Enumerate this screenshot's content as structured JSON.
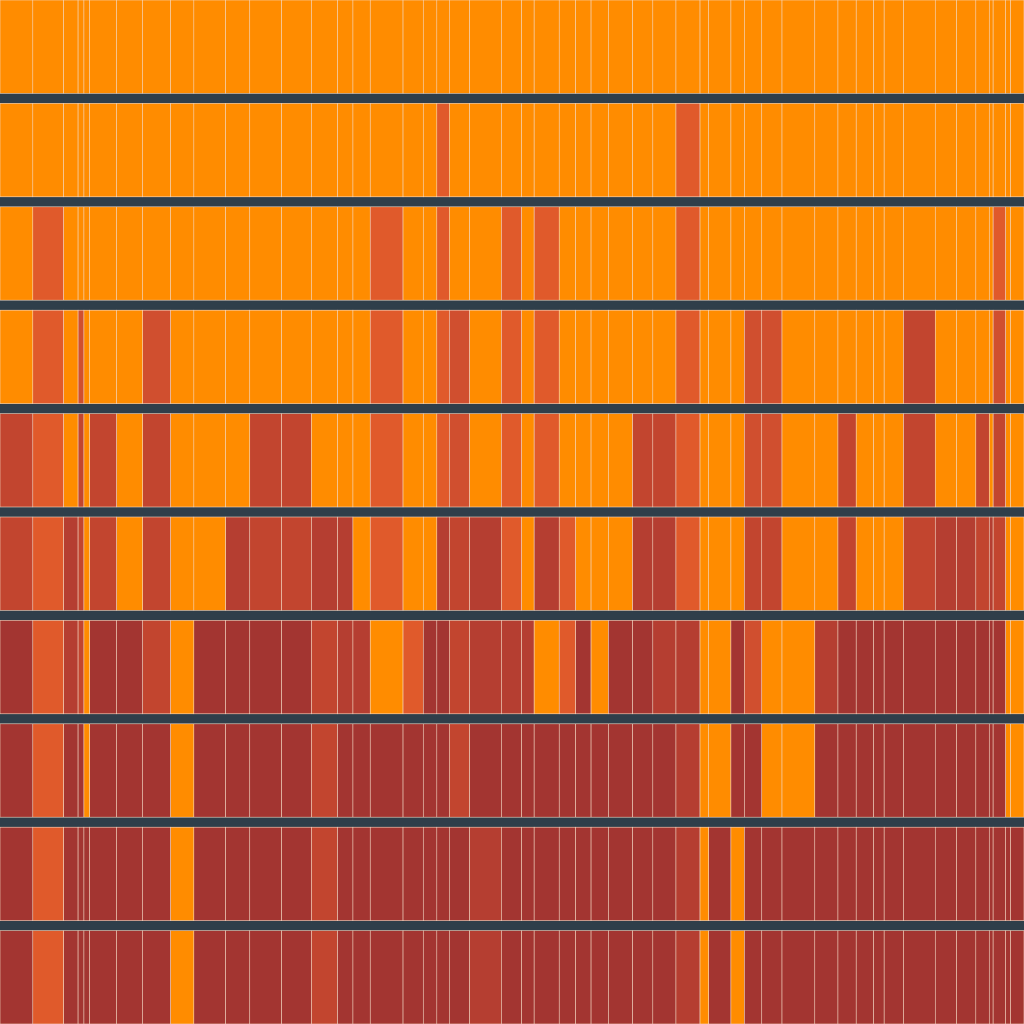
{
  "chart_data": {
    "type": "heatmap",
    "title": "",
    "xlabel": "",
    "ylabel": "",
    "column_weights": [
      34,
      32,
      15,
      6,
      6,
      28,
      27,
      29,
      24,
      33,
      25,
      33,
      31,
      27,
      16,
      18,
      34,
      21,
      14,
      13,
      21,
      33,
      21,
      13,
      26,
      17,
      16,
      18,
      25,
      21,
      24,
      25,
      9,
      23,
      14,
      18,
      21,
      34,
      24,
      19,
      18,
      11,
      20,
      33,
      22,
      20,
      14,
      4,
      13,
      5,
      14
    ],
    "palette": [
      "#ff8c00",
      "#e05a2b",
      "#d04f2f",
      "#c2452f",
      "#b53e31",
      "#a33531"
    ],
    "rows": [
      [
        0,
        0,
        0,
        0,
        0,
        0,
        0,
        0,
        0,
        0,
        0,
        0,
        0,
        0,
        0,
        0,
        0,
        0,
        0,
        0,
        0,
        0,
        0,
        0,
        0,
        0,
        0,
        0,
        0,
        0,
        0,
        0,
        0,
        0,
        0,
        0,
        0,
        0,
        0,
        0,
        0,
        0,
        0,
        0,
        0,
        0,
        0,
        0,
        0,
        0,
        0
      ],
      [
        0,
        0,
        0,
        0,
        0,
        0,
        0,
        0,
        0,
        0,
        0,
        0,
        0,
        0,
        0,
        0,
        0,
        0,
        0,
        1,
        0,
        0,
        0,
        0,
        0,
        0,
        0,
        0,
        0,
        0,
        0,
        1,
        0,
        0,
        0,
        0,
        0,
        0,
        0,
        0,
        0,
        0,
        0,
        0,
        0,
        0,
        0,
        0,
        0,
        0,
        0
      ],
      [
        0,
        1,
        0,
        0,
        0,
        0,
        0,
        0,
        0,
        0,
        0,
        0,
        0,
        0,
        0,
        0,
        1,
        0,
        0,
        1,
        0,
        0,
        1,
        0,
        1,
        0,
        0,
        0,
        0,
        0,
        0,
        1,
        0,
        0,
        0,
        0,
        0,
        0,
        0,
        0,
        0,
        0,
        0,
        0,
        0,
        0,
        0,
        0,
        1,
        0,
        0
      ],
      [
        0,
        1,
        0,
        2,
        0,
        0,
        0,
        2,
        0,
        0,
        0,
        0,
        0,
        0,
        0,
        0,
        1,
        0,
        0,
        1,
        2,
        0,
        1,
        0,
        1,
        0,
        0,
        0,
        0,
        0,
        0,
        1,
        0,
        0,
        0,
        2,
        2,
        0,
        0,
        0,
        0,
        0,
        0,
        3,
        0,
        0,
        0,
        0,
        2,
        0,
        0
      ],
      [
        3,
        1,
        0,
        3,
        0,
        3,
        0,
        3,
        0,
        0,
        0,
        3,
        3,
        0,
        0,
        0,
        1,
        0,
        0,
        1,
        2,
        0,
        1,
        0,
        1,
        0,
        0,
        0,
        0,
        3,
        3,
        1,
        0,
        0,
        0,
        2,
        2,
        0,
        0,
        3,
        0,
        0,
        0,
        3,
        0,
        0,
        3,
        0,
        3,
        0,
        0
      ],
      [
        3,
        1,
        4,
        3,
        0,
        3,
        0,
        3,
        0,
        0,
        4,
        3,
        3,
        4,
        4,
        0,
        1,
        0,
        0,
        4,
        3,
        4,
        1,
        0,
        4,
        1,
        0,
        0,
        0,
        4,
        4,
        1,
        0,
        0,
        0,
        3,
        3,
        0,
        0,
        3,
        0,
        0,
        0,
        3,
        4,
        4,
        3,
        4,
        3,
        0,
        0
      ],
      [
        5,
        1,
        4,
        3,
        0,
        5,
        5,
        3,
        0,
        5,
        5,
        5,
        5,
        3,
        4,
        4,
        0,
        1,
        5,
        5,
        3,
        4,
        4,
        4,
        0,
        1,
        5,
        0,
        5,
        5,
        4,
        4,
        0,
        0,
        5,
        2,
        0,
        0,
        4,
        5,
        5,
        5,
        5,
        5,
        5,
        5,
        5,
        5,
        5,
        0,
        0
      ],
      [
        5,
        1,
        5,
        5,
        0,
        5,
        5,
        5,
        0,
        5,
        5,
        5,
        5,
        3,
        5,
        5,
        5,
        5,
        5,
        5,
        3,
        5,
        5,
        5,
        5,
        5,
        5,
        5,
        5,
        5,
        5,
        4,
        0,
        0,
        5,
        5,
        0,
        0,
        5,
        5,
        5,
        5,
        5,
        5,
        5,
        5,
        5,
        5,
        5,
        0,
        0
      ],
      [
        5,
        1,
        5,
        5,
        5,
        5,
        5,
        5,
        0,
        5,
        5,
        5,
        5,
        3,
        5,
        5,
        5,
        5,
        5,
        5,
        5,
        4,
        5,
        5,
        5,
        5,
        5,
        5,
        5,
        5,
        5,
        4,
        0,
        5,
        0,
        5,
        5,
        5,
        5,
        5,
        5,
        5,
        5,
        5,
        5,
        5,
        5,
        5,
        5,
        5,
        5
      ],
      [
        5,
        1,
        5,
        5,
        5,
        5,
        5,
        5,
        0,
        5,
        5,
        5,
        5,
        3,
        5,
        5,
        5,
        5,
        5,
        5,
        5,
        4,
        5,
        5,
        5,
        5,
        5,
        5,
        5,
        5,
        5,
        4,
        0,
        5,
        0,
        5,
        5,
        5,
        5,
        5,
        5,
        5,
        5,
        5,
        5,
        5,
        5,
        5,
        5,
        5,
        5
      ]
    ]
  }
}
